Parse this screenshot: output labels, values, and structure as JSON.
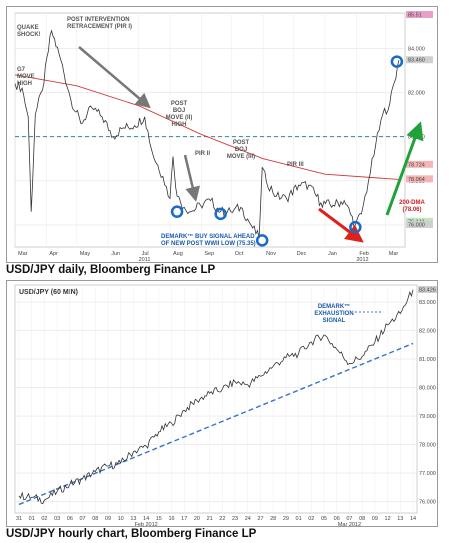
{
  "captions": {
    "daily": "USD/JPY daily, Bloomberg Finance LP",
    "hourly": "USD/JPY hourly chart, Bloomberg Finance LP"
  },
  "colors": {
    "price": "#333333",
    "dma": "#d23a3a",
    "support_line": "#3a72c8",
    "fib_line": "#2a8a9a",
    "arrow_red": "#e0201c",
    "arrow_green": "#1fa23a",
    "arrow_gray": "#777777",
    "circle": "#1a6ac8",
    "last_box": "#cfcfcf"
  },
  "annotations": {
    "quake": [
      "QUAKE",
      "SHOCK!"
    ],
    "g7": [
      "G7",
      "MOVE",
      "HIGH"
    ],
    "post_intervention": [
      "POST INTERVENTION",
      "RETRACEMENT (PIR I)"
    ],
    "post_boj_ii": [
      "POST",
      "BOJ",
      "MOVE (II)",
      "HIGH"
    ],
    "post_boj_iii": [
      "POST",
      "BOJ",
      "MOVE (III)"
    ],
    "pir_ii": "PIR II",
    "pir_iii": "PIR III",
    "demark_daily": [
      "DEMARK™ BUY SIGNAL AHEAD",
      "OF NEW POST WWII LOW (75.35)"
    ],
    "dma": [
      "200-DMA",
      "(78.06)"
    ],
    "demark_hourly": [
      "DEMARK™",
      "EXHAUSTION",
      "SIGNAL"
    ]
  },
  "chart_data": [
    {
      "type": "line",
      "title": "",
      "xlabel": "",
      "ylabel": "",
      "x_ticks": [
        "Mar",
        "Apr",
        "May",
        "Jun",
        "Jul",
        "Aug",
        "Sep",
        "Oct",
        "Nov",
        "Dec",
        "Jan",
        "Feb",
        "Mar"
      ],
      "x_group_labels": [
        "2011",
        "2012"
      ],
      "y_ticks": [
        76,
        78,
        80,
        82,
        84
      ],
      "y_tick_labels": [
        "76.000",
        "78.000",
        "80.000",
        "82.000",
        "84.000"
      ],
      "ylim": [
        75.0,
        85.6
      ],
      "right_labels": [
        "85.51",
        "83.460",
        "78.724",
        "78.064",
        "76.141",
        "76.000"
      ],
      "last_value": 83.46,
      "series": [
        {
          "name": "USD/JPY",
          "x": [
            "2011-03-01",
            "2011-03-08",
            "2011-03-14",
            "2011-03-17",
            "2011-03-21",
            "2011-03-28",
            "2011-04-06",
            "2011-04-15",
            "2011-04-25",
            "2011-05-05",
            "2011-05-16",
            "2011-05-26",
            "2011-06-06",
            "2011-06-16",
            "2011-06-27",
            "2011-07-07",
            "2011-07-15",
            "2011-07-25",
            "2011-08-01",
            "2011-08-04",
            "2011-08-08",
            "2011-08-15",
            "2011-08-22",
            "2011-08-31",
            "2011-09-10",
            "2011-09-20",
            "2011-09-30",
            "2011-10-10",
            "2011-10-20",
            "2011-10-28",
            "2011-10-31",
            "2011-11-04",
            "2011-11-14",
            "2011-11-24",
            "2011-12-06",
            "2011-12-16",
            "2011-12-28",
            "2012-01-09",
            "2012-01-20",
            "2012-01-31",
            "2012-02-06",
            "2012-02-13",
            "2012-02-20",
            "2012-02-27",
            "2012-03-05",
            "2012-03-14"
          ],
          "values": [
            82.4,
            82.2,
            80.9,
            76.6,
            81.0,
            82.1,
            84.8,
            83.5,
            81.7,
            80.6,
            81.3,
            80.9,
            80.0,
            80.4,
            80.5,
            80.9,
            79.2,
            78.2,
            77.2,
            79.1,
            77.3,
            76.8,
            76.6,
            76.9,
            77.1,
            76.6,
            76.6,
            76.8,
            76.0,
            75.4,
            78.6,
            78.0,
            77.3,
            77.2,
            77.8,
            77.8,
            77.0,
            76.9,
            77.1,
            76.0,
            76.5,
            78.0,
            79.6,
            81.0,
            81.5,
            83.46
          ]
        },
        {
          "name": "200-DMA",
          "x": [
            "2011-03-01",
            "2011-05-01",
            "2011-07-01",
            "2011-09-01",
            "2011-11-01",
            "2012-01-01",
            "2012-03-14"
          ],
          "values": [
            82.8,
            82.3,
            81.4,
            80.1,
            79.0,
            78.3,
            78.06
          ]
        }
      ],
      "reference_lines": [
        {
          "name": "Fibonacci retracement",
          "value": 80.0
        }
      ],
      "grid": true
    },
    {
      "type": "line",
      "title": "USD/JPY (60 MIN)",
      "xlabel": "",
      "ylabel": "",
      "x_ticks": [
        "31",
        "01",
        "02",
        "03",
        "06",
        "07",
        "08",
        "09",
        "10",
        "13",
        "14",
        "15",
        "16",
        "17",
        "20",
        "21",
        "22",
        "23",
        "24",
        "27",
        "28",
        "29",
        "01",
        "02",
        "05",
        "06",
        "07",
        "08",
        "09",
        "12",
        "13",
        "14"
      ],
      "x_group_labels": [
        "Feb 2012",
        "Mar 2012"
      ],
      "y_ticks": [
        76,
        77,
        78,
        79,
        80,
        81,
        82,
        83
      ],
      "y_tick_labels": [
        "76.000",
        "77.000",
        "78.000",
        "79.000",
        "80.000",
        "81.000",
        "82.000",
        "83.000"
      ],
      "ylim": [
        75.6,
        83.6
      ],
      "last_value": 83.426,
      "last_label": "83.426",
      "series": [
        {
          "name": "USD/JPY",
          "x": [
            0,
            1,
            2,
            3,
            4,
            5,
            6,
            7,
            8,
            9,
            10,
            11,
            12,
            13,
            14,
            15,
            16,
            17,
            18,
            19,
            20,
            21,
            22,
            23,
            24,
            25,
            26,
            27,
            28,
            29,
            30,
            31
          ],
          "values": [
            76.2,
            76.15,
            76.05,
            76.35,
            76.6,
            76.8,
            77.05,
            77.25,
            77.35,
            77.75,
            77.95,
            78.45,
            78.75,
            79.2,
            79.55,
            79.8,
            79.95,
            80.2,
            80.1,
            80.4,
            80.75,
            81.05,
            81.2,
            81.6,
            81.85,
            81.35,
            80.85,
            81.1,
            81.6,
            82.2,
            82.6,
            83.43
          ]
        },
        {
          "name": "Trendline",
          "x": [
            0,
            31
          ],
          "values": [
            75.9,
            81.55
          ]
        }
      ],
      "grid": true
    }
  ]
}
